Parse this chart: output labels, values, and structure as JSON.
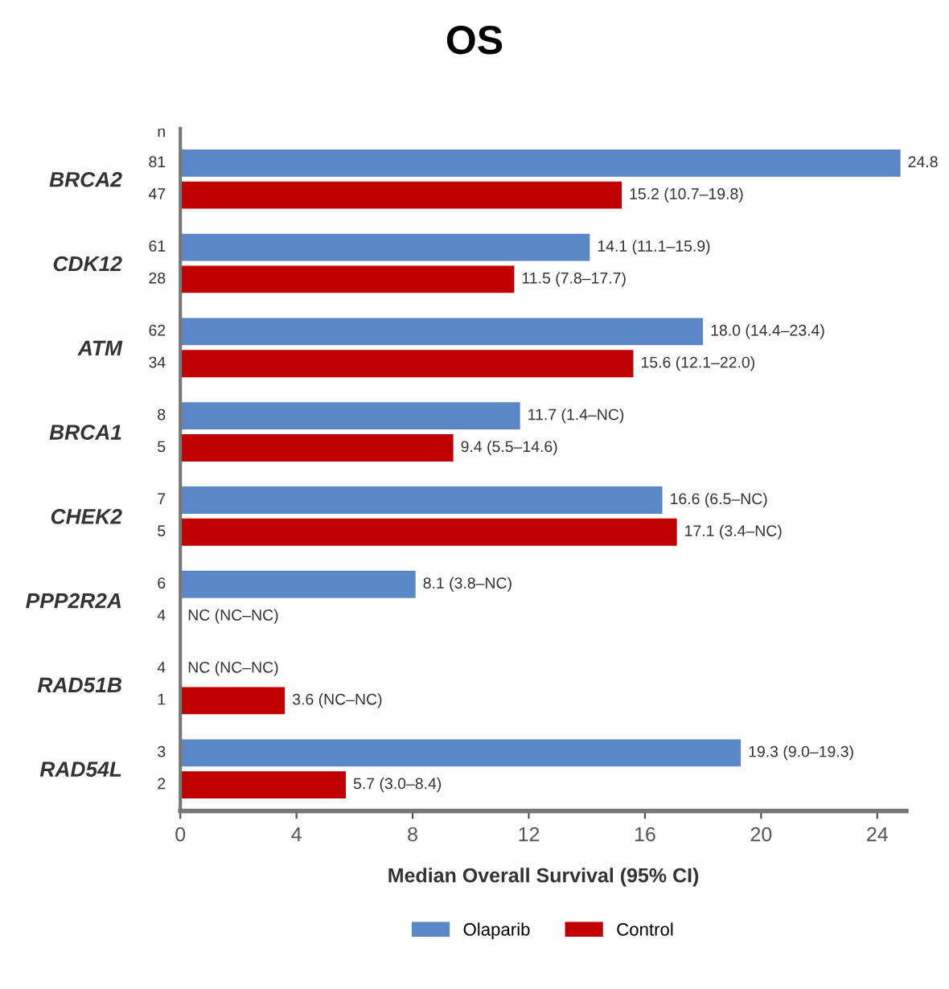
{
  "chart_data": {
    "type": "bar",
    "orientation": "horizontal",
    "title": "OS",
    "xlabel": "Median Overall Survival (95% CI)",
    "categories": [
      "BRCA2",
      "CDK12",
      "ATM",
      "BRCA1",
      "CHEK2",
      "PPP2R2A",
      "RAD51B",
      "RAD54L"
    ],
    "series": [
      {
        "name": "Olaparib",
        "color": "#5b87c6",
        "values": [
          24.8,
          14.1,
          18.0,
          11.7,
          16.6,
          8.1,
          null,
          19.3
        ],
        "value_labels": [
          "24.8",
          "14.1 (11.1–15.9)",
          "18.0 (14.4–23.4)",
          "11.7 (1.4–NC)",
          "16.6 (6.5–NC)",
          "8.1 (3.8–NC)",
          "NC (NC–NC)",
          "19.3 (9.0–19.3)"
        ]
      },
      {
        "name": "Control",
        "color": "#c00000",
        "values": [
          15.2,
          11.5,
          15.6,
          9.4,
          17.1,
          null,
          3.6,
          5.7
        ],
        "value_labels": [
          "15.2 (10.7–19.8)",
          "11.5 (7.8–17.7)",
          "15.6 (12.1–22.0)",
          "9.4 (5.5–14.6)",
          "17.1 (3.4–NC)",
          "NC (NC–NC)",
          "3.6 (NC–NC)",
          "5.7 (3.0–8.4)"
        ]
      }
    ],
    "annotations": [
      "n",
      "81",
      "47",
      "61",
      "28",
      "62",
      "34",
      "8",
      "5",
      "7",
      "5",
      "6",
      "4",
      "4",
      "1",
      "3",
      "2"
    ],
    "xlim": [
      0,
      25
    ],
    "xticks": [
      0,
      4,
      8,
      12,
      16,
      20,
      24
    ],
    "grid": false,
    "legend": "bottom"
  }
}
